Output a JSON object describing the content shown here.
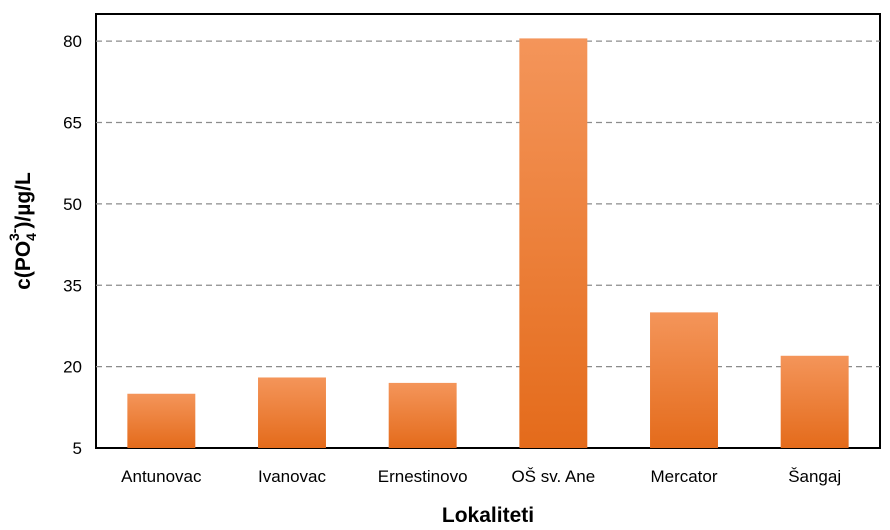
{
  "chart_data": {
    "type": "bar",
    "categories": [
      "Antunovac",
      "Ivanovac",
      "Ernestinovo",
      "OŠ sv. Ane",
      "Mercator",
      "Šangaj"
    ],
    "values": [
      15,
      18,
      17,
      80.5,
      30,
      22
    ],
    "xlabel": "Lokaliteti",
    "ylabel": {
      "prefix": "c(PO",
      "subscript": "4",
      "superscript": "3-",
      "suffix": ")/µg/L"
    },
    "ylim": [
      5,
      85
    ],
    "yticks": [
      5,
      20,
      35,
      50,
      65,
      80
    ],
    "grid": true,
    "grid_style": "dashed",
    "bar_color_top": "#F4955A",
    "bar_color_bottom": "#E46B1B"
  }
}
